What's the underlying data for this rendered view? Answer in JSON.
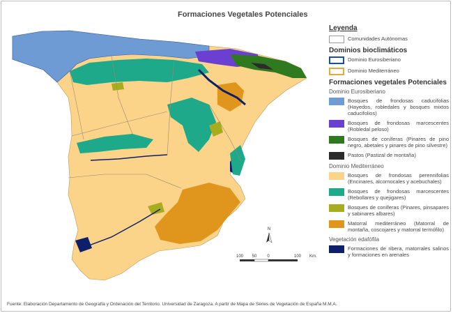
{
  "title": "Formaciones Vegetales Potenciales",
  "legend": {
    "heading": "Leyenda",
    "communities": "Comunidades Autónomas",
    "domains_heading": "Dominios bioclimáticos",
    "domain_euro": "Dominio Eurosiberiano",
    "domain_med": "Dominio Mediterráneo",
    "formations_heading": "Formaciones vegetales Potenciales",
    "euro_sub": "Dominio Eurosiberiano",
    "euro_items": [
      {
        "label": "Bosques de frondosas caducifolias (Hayedos, robledales y bosques mixtos caducifolios)",
        "color": "#6f9bd4"
      },
      {
        "label": "Bosques de frondosas marcescentes (Robledal peloso)",
        "color": "#6a3fd2"
      },
      {
        "label": "Bosques de coníferas (Pinares de pino negro, abetales y pinares de pino silvestre)",
        "color": "#2f7a1e"
      },
      {
        "label": "Pastos (Pastizal de montaña)",
        "color": "#2b2b2b"
      }
    ],
    "med_sub": "Dominio Mediterráneo",
    "med_items": [
      {
        "label": "Bosques de frondosas perennifolias (Encinares, alcornocales y acebuchales)",
        "color": "#fbd389"
      },
      {
        "label": "Bosques de frondosas marcescentes (Rebollares y quejigares)",
        "color": "#1fa98b"
      },
      {
        "label": "Bosques de coníferas (Pinares, pinsapares y sabinares albares)",
        "color": "#a8ad20"
      },
      {
        "label": "Matorral mediterráneo (Matorral de montaña, coscojares y matorral termófilo)",
        "color": "#e0961c"
      }
    ],
    "veg_sub": "Vegetación edafófila",
    "veg_items": [
      {
        "label": "Formaciones de ribera, matorrales salinos y formaciones en arenales",
        "color": "#0d1f6b"
      }
    ]
  },
  "scale": {
    "ticks": [
      "100",
      "50",
      "0",
      "100"
    ],
    "unit": "Km."
  },
  "north": "N",
  "source": "Fuente: Elaboración Departamento de Geografía y Ordenación del Territorio. Universidad de Zaragoza. A partir de Mapa de Series de Vegetación de España M.M.A."
}
